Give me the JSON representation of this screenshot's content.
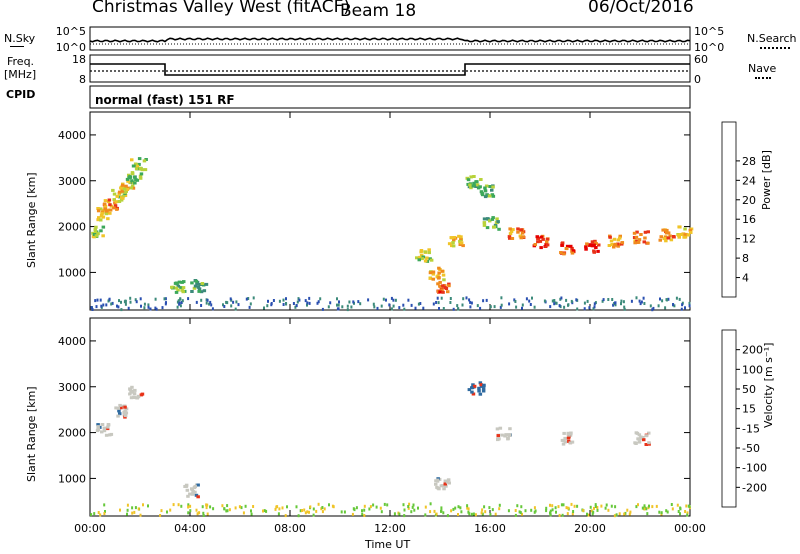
{
  "header": {
    "title": "Christmas Valley West (fitACF)",
    "beam": "Beam 18",
    "date": "06/Oct/2016"
  },
  "strip_labels": {
    "nsky": "N.Sky",
    "nsearch": "N.Search",
    "freq": "Freq.",
    "freq_unit": "[MHz]",
    "nave": "Nave",
    "cpid": "CPID",
    "cpid_value": "normal (fast) 151 RF"
  },
  "noise_axis": {
    "left": [
      "10^5",
      "10^0"
    ],
    "right": [
      "10^5",
      "10^0"
    ]
  },
  "freq_axis": {
    "left": [
      "18",
      "8"
    ],
    "right": [
      "60",
      "0"
    ]
  },
  "panels": {
    "power": {
      "ylabel": "Slant Range [km]",
      "cbar_label": "Power [dB]"
    },
    "velocity": {
      "ylabel": "Slant Range [km]",
      "cbar_label": "Velocity [m s⁻¹]"
    }
  },
  "xaxis_label": "Time UT",
  "chart_data": [
    {
      "type": "heatmap",
      "name": "power",
      "x": [
        "00:00",
        "04:00",
        "08:00",
        "12:00",
        "16:00",
        "20:00",
        "00:00"
      ],
      "xlim_hours": [
        0,
        24
      ],
      "ylim": [
        180,
        4500
      ],
      "yticks": [
        1000,
        2000,
        3000,
        4000
      ],
      "colorbar": {
        "label": "Power [dB]",
        "ticks": [
          "4",
          "8",
          "12",
          "16",
          "20",
          "24",
          "28"
        ],
        "colors": [
          "#0000ff",
          "#2a4fb0",
          "#3c8a7a",
          "#3ca85a",
          "#b8d23a",
          "#f0c428",
          "#f08a1e",
          "#e83218",
          "#e60000"
        ]
      },
      "features": [
        {
          "t": 0.2,
          "r": 1900,
          "v": 16
        },
        {
          "t": 0.5,
          "r": 2300,
          "v": 20
        },
        {
          "t": 0.8,
          "r": 2500,
          "v": 24
        },
        {
          "t": 1.1,
          "r": 2700,
          "v": 16
        },
        {
          "t": 1.4,
          "r": 2900,
          "v": 20
        },
        {
          "t": 1.7,
          "r": 3100,
          "v": 12
        },
        {
          "t": 1.9,
          "r": 3400,
          "v": 16
        },
        {
          "t": 3.5,
          "r": 720,
          "v": 12
        },
        {
          "t": 4.3,
          "r": 740,
          "v": 10
        },
        {
          "t": 13.3,
          "r": 1400,
          "v": 16
        },
        {
          "t": 13.8,
          "r": 1000,
          "v": 20
        },
        {
          "t": 14.1,
          "r": 700,
          "v": 26
        },
        {
          "t": 14.6,
          "r": 1700,
          "v": 20
        },
        {
          "t": 15.3,
          "r": 3000,
          "v": 12
        },
        {
          "t": 15.8,
          "r": 2800,
          "v": 12
        },
        {
          "t": 16.0,
          "r": 2100,
          "v": 12
        },
        {
          "t": 17.0,
          "r": 1900,
          "v": 24
        },
        {
          "t": 18.0,
          "r": 1700,
          "v": 28
        },
        {
          "t": 19.0,
          "r": 1550,
          "v": 28
        },
        {
          "t": 20.0,
          "r": 1600,
          "v": 28
        },
        {
          "t": 21.0,
          "r": 1700,
          "v": 24
        },
        {
          "t": 22.0,
          "r": 1800,
          "v": 24
        },
        {
          "t": 23.0,
          "r": 1850,
          "v": 24
        },
        {
          "t": 23.7,
          "r": 1900,
          "v": 20
        }
      ]
    },
    {
      "type": "heatmap",
      "name": "velocity",
      "x": [
        "00:00",
        "04:00",
        "08:00",
        "12:00",
        "16:00",
        "20:00",
        "00:00"
      ],
      "xlim_hours": [
        0,
        24
      ],
      "ylim": [
        180,
        4500
      ],
      "yticks": [
        1000,
        2000,
        3000,
        4000
      ],
      "colorbar": {
        "label": "Velocity [m s⁻¹]",
        "ticks": [
          "200",
          "100",
          "50",
          "15",
          "-15",
          "-50",
          "-100",
          "-200"
        ],
        "colors": [
          "#1a2fb0",
          "#2f6aa0",
          "#3c9a60",
          "#66c83a",
          "#c8c8c0",
          "#f0c428",
          "#f08a1e",
          "#e83218",
          "#e60000"
        ]
      },
      "features": [
        {
          "t": 0.5,
          "r": 2100,
          "v": 0
        },
        {
          "t": 1.2,
          "r": 2500,
          "v": 0
        },
        {
          "t": 1.8,
          "r": 2900,
          "v": 0
        },
        {
          "t": 4.0,
          "r": 760,
          "v": 0
        },
        {
          "t": 14.0,
          "r": 900,
          "v": 0
        },
        {
          "t": 15.4,
          "r": 3000,
          "v": 150
        },
        {
          "t": 16.5,
          "r": 2000,
          "v": 0
        },
        {
          "t": 19.0,
          "r": 1900,
          "v": 0
        },
        {
          "t": 22.0,
          "r": 1900,
          "v": 0
        }
      ]
    }
  ]
}
